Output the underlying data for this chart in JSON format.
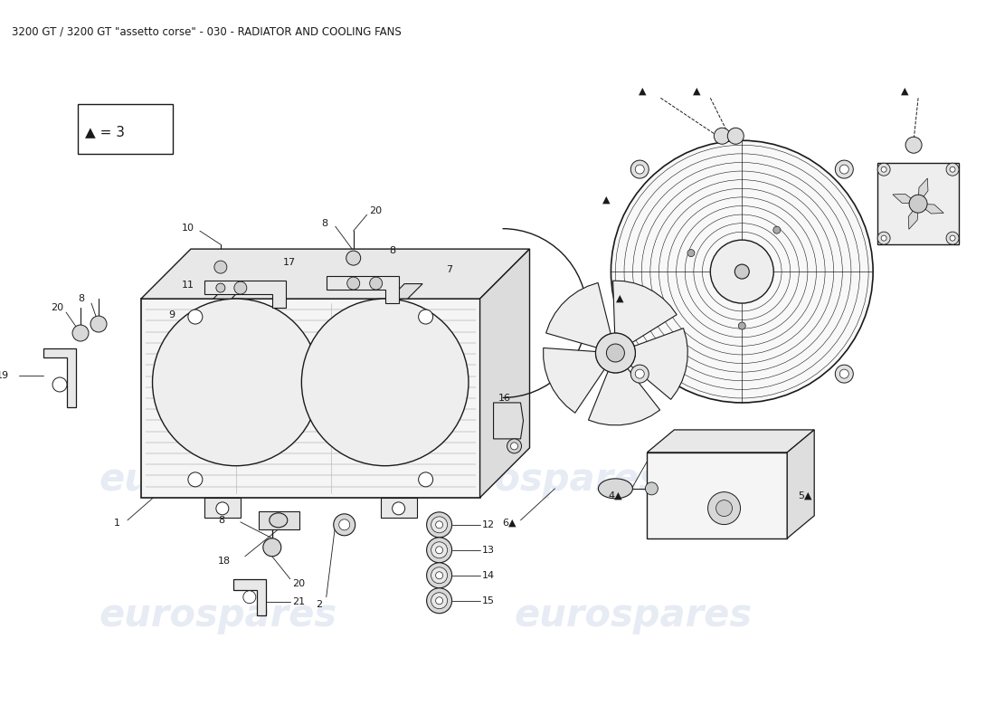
{
  "title": "3200 GT / 3200 GT \"assetto corse\" - 030 - RADIATOR AND COOLING FANS",
  "title_fontsize": 8.5,
  "bg_color": "#ffffff",
  "line_color": "#1a1a1a",
  "watermark_text": "eurospares",
  "watermark_color": "#c8d4e8",
  "watermark_alpha": 0.45,
  "watermark_fontsize": 30
}
